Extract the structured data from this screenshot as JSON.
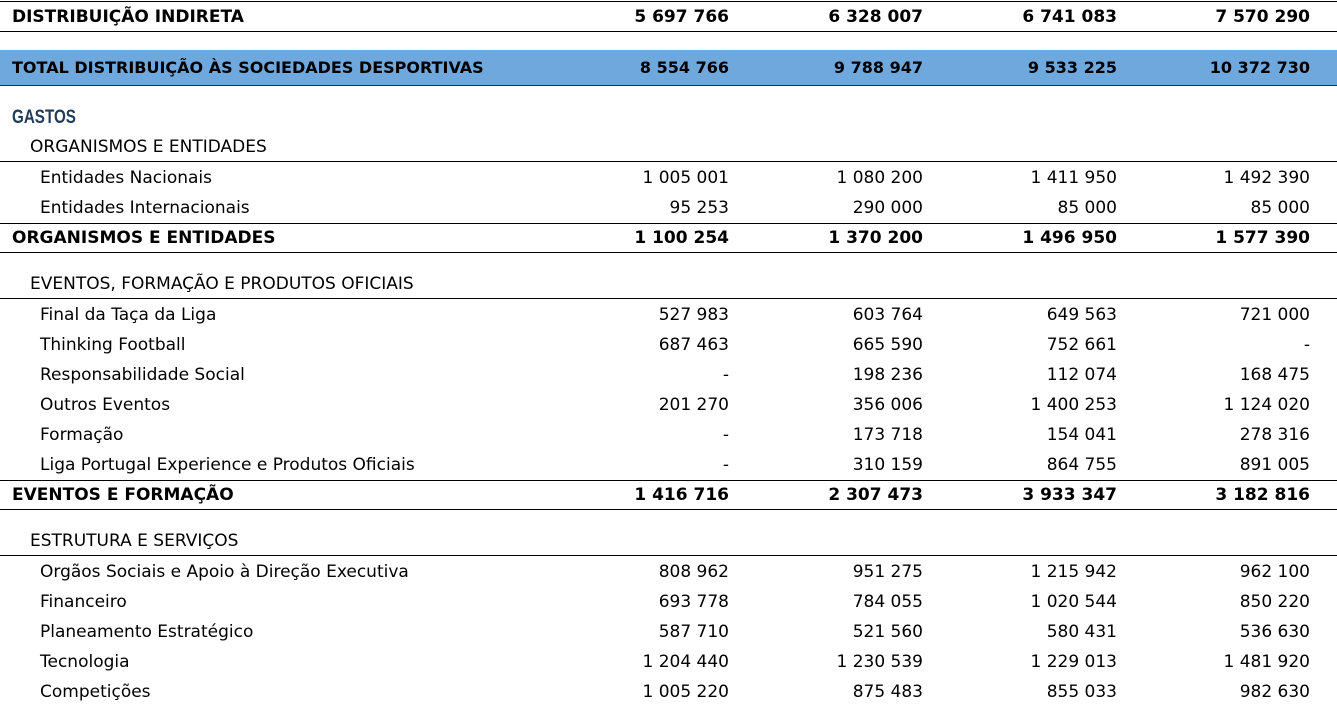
{
  "top": {
    "distribuicao_indireta": {
      "label": "DISTRIBUIÇÃO INDIRETA",
      "values": [
        "5 697 766",
        "6 328 007",
        "6 741 083",
        "7 570 290"
      ]
    },
    "total_distribuicao": {
      "label": "TOTAL DISTRIBUIÇÃO ÀS SOCIEDADES DESPORTIVAS",
      "values": [
        "8 554 766",
        "9 788 947",
        "9 533 225",
        "10 372 730"
      ]
    }
  },
  "gastos_title": "GASTOS",
  "organismos": {
    "title": "ORGANISMOS E ENTIDADES",
    "items": [
      {
        "label": "Entidades Nacionais",
        "values": [
          "1 005 001",
          "1 080 200",
          "1 411 950",
          "1 492 390"
        ]
      },
      {
        "label": "Entidades Internacionais",
        "values": [
          "95 253",
          "290 000",
          "85 000",
          "85 000"
        ]
      }
    ],
    "total": {
      "label": "ORGANISMOS E ENTIDADES",
      "values": [
        "1 100 254",
        "1 370 200",
        "1 496 950",
        "1 577 390"
      ]
    }
  },
  "eventos": {
    "title": "EVENTOS, FORMAÇÃO E PRODUTOS OFICIAIS",
    "items": [
      {
        "label": "Final da Taça da Liga",
        "values": [
          "527 983",
          "603 764",
          "649 563",
          "721 000"
        ]
      },
      {
        "label": "Thinking Football",
        "values": [
          "687 463",
          "665 590",
          "752 661",
          "-"
        ]
      },
      {
        "label": "Responsabilidade Social",
        "values": [
          "-",
          "198 236",
          "112 074",
          "168 475"
        ]
      },
      {
        "label": "Outros Eventos",
        "values": [
          "201 270",
          "356 006",
          "1 400 253",
          "1 124 020"
        ]
      },
      {
        "label": "Formação",
        "values": [
          "-",
          "173 718",
          "154 041",
          "278 316"
        ]
      },
      {
        "label": "Liga Portugal Experience e Produtos Oficiais",
        "values": [
          "-",
          "310 159",
          "864 755",
          "891 005"
        ]
      }
    ],
    "total": {
      "label": "EVENTOS E FORMAÇÃO",
      "values": [
        "1 416 716",
        "2 307 473",
        "3 933 347",
        "3 182 816"
      ]
    }
  },
  "estrutura": {
    "title": "ESTRUTURA E SERVIÇOS",
    "items": [
      {
        "label": "Orgãos Sociais e Apoio à Direção Executiva",
        "values": [
          "808 962",
          "951 275",
          "1 215 942",
          "962 100"
        ]
      },
      {
        "label": "Financeiro",
        "values": [
          "693 778",
          "784 055",
          "1 020 544",
          "850 220"
        ]
      },
      {
        "label": "Planeamento Estratégico",
        "values": [
          "587 710",
          "521 560",
          "580 431",
          "536 630"
        ]
      },
      {
        "label": "Tecnologia",
        "values": [
          "1 204 440",
          "1 230 539",
          "1 229 013",
          "1 481 920"
        ]
      },
      {
        "label": "Competições",
        "values": [
          "1 005 220",
          "875 483",
          "855 033",
          "982 630"
        ]
      }
    ]
  }
}
